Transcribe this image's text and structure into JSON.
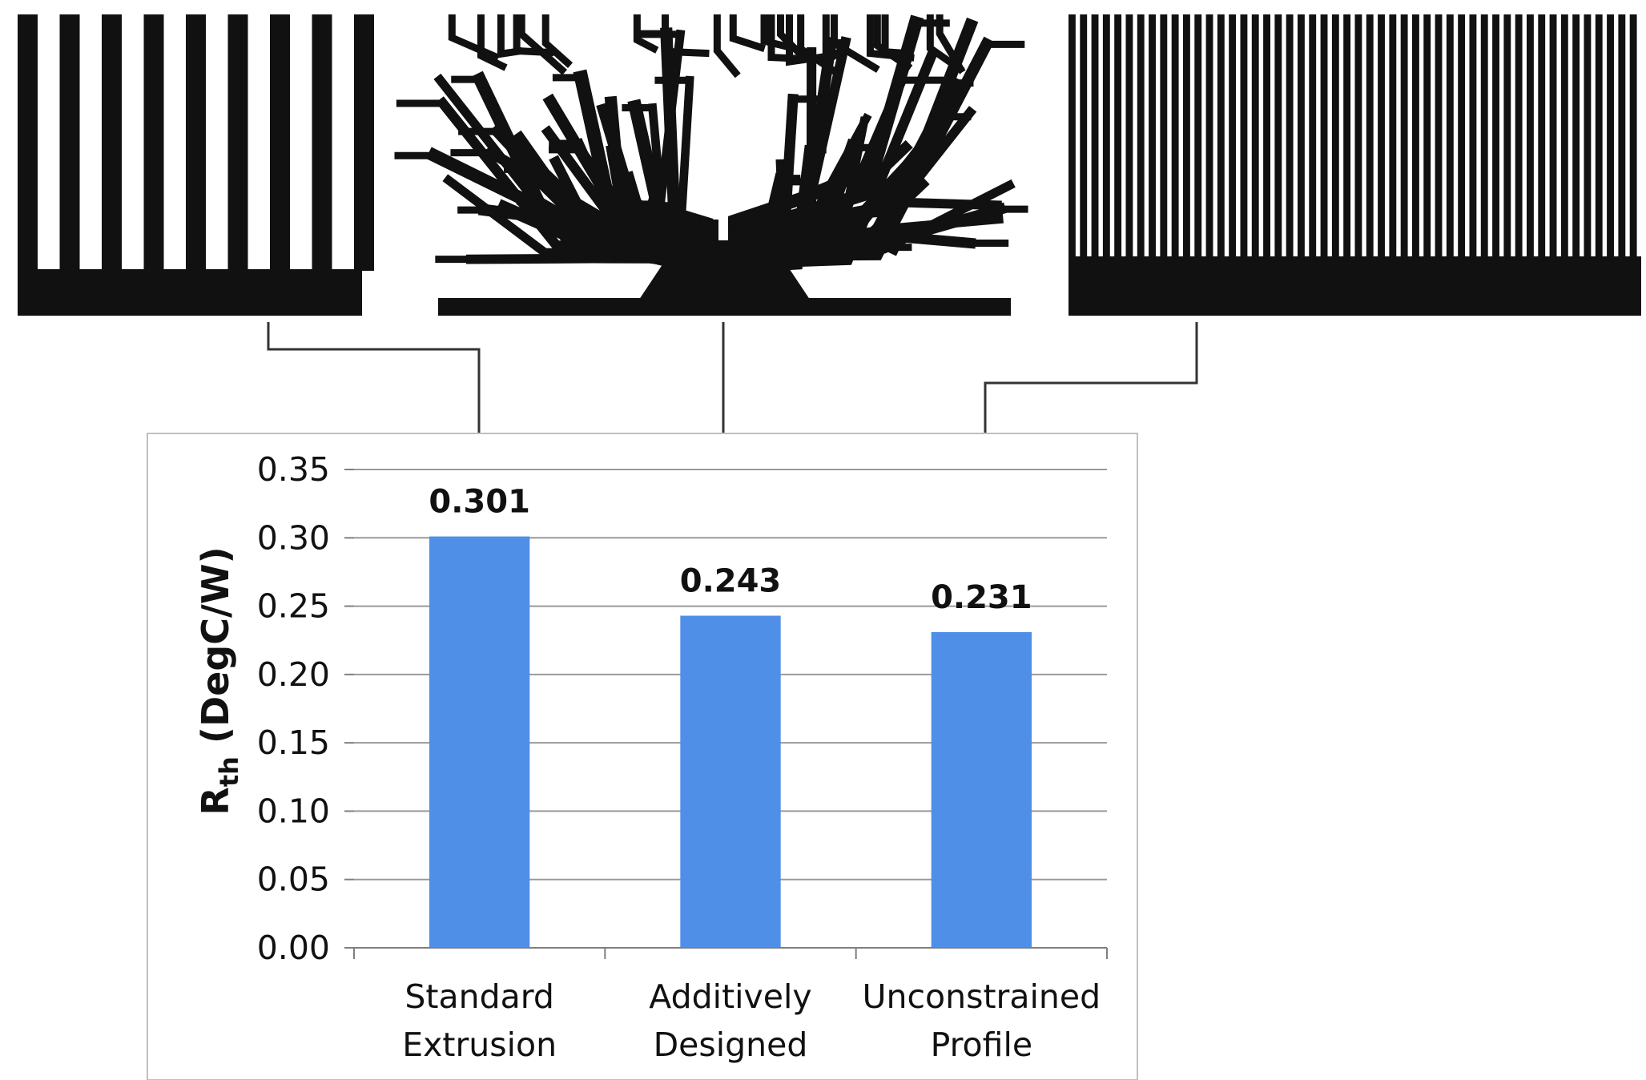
{
  "chart_data": {
    "type": "bar",
    "categories": [
      "Standard\nExtrusion",
      "Additively\nDesigned",
      "Unconstrained\nProfile"
    ],
    "values": [
      0.301,
      0.243,
      0.231
    ],
    "value_labels": [
      "0.301",
      "0.243",
      "0.231"
    ],
    "title": "",
    "xlabel": "",
    "ylabel_main": "R",
    "ylabel_subscript": "th",
    "ylabel_units": " (DegC/W)",
    "ylim": [
      0,
      0.35
    ],
    "yticks": [
      0.0,
      0.05,
      0.1,
      0.15,
      0.2,
      0.25,
      0.3,
      0.35
    ],
    "ytick_labels": [
      "0.00",
      "0.05",
      "0.10",
      "0.15",
      "0.20",
      "0.25",
      "0.30",
      "0.35"
    ],
    "grid": true,
    "bar_color": "#4f8fe8"
  },
  "heat_sink_images": [
    {
      "name": "standard-extrusion",
      "description_icon": "straight-fin-heat-sink-icon"
    },
    {
      "name": "additively-designed",
      "description_icon": "branching-fin-heat-sink-icon"
    },
    {
      "name": "unconstrained-profile",
      "description_icon": "dense-fin-heat-sink-icon"
    }
  ]
}
